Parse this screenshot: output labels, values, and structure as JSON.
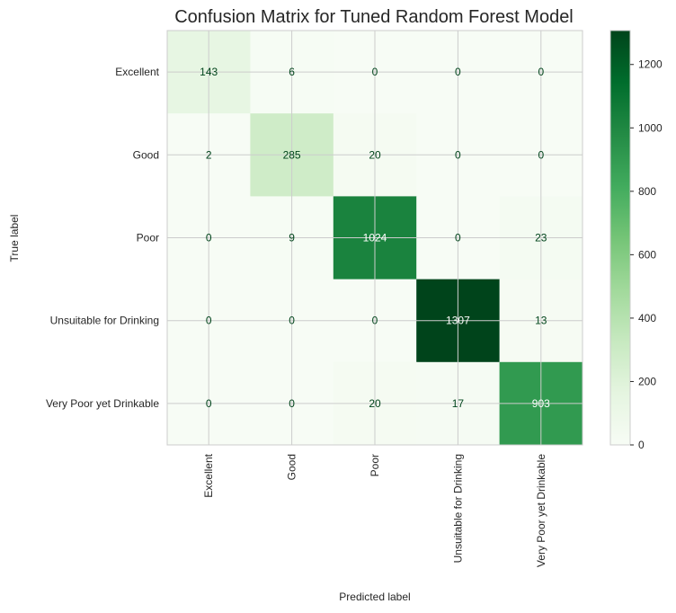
{
  "chart_data": {
    "type": "heatmap",
    "title": "Confusion Matrix for Tuned Random Forest Model",
    "xlabel": "Predicted label",
    "ylabel": "True label",
    "x_categories": [
      "Excellent",
      "Good",
      "Poor",
      "Unsuitable for Drinking",
      "Very Poor yet Drinkable"
    ],
    "y_categories": [
      "Excellent",
      "Good",
      "Poor",
      "Unsuitable for Drinking",
      "Very Poor yet Drinkable"
    ],
    "matrix": [
      [
        143,
        6,
        0,
        0,
        0
      ],
      [
        2,
        285,
        20,
        0,
        0
      ],
      [
        0,
        9,
        1024,
        0,
        23
      ],
      [
        0,
        0,
        0,
        1307,
        13
      ],
      [
        0,
        0,
        20,
        17,
        903
      ]
    ],
    "colormap": "Greens",
    "color_range": [
      0,
      1307
    ],
    "colorbar_ticks": [
      0,
      200,
      400,
      600,
      800,
      1000,
      1200
    ],
    "grid": true,
    "colors": {
      "low": "#f7fcf5",
      "high": "#00441b",
      "grid": "#cccccc",
      "text_dark": "#00441b",
      "text_light": "#ffffff"
    }
  }
}
